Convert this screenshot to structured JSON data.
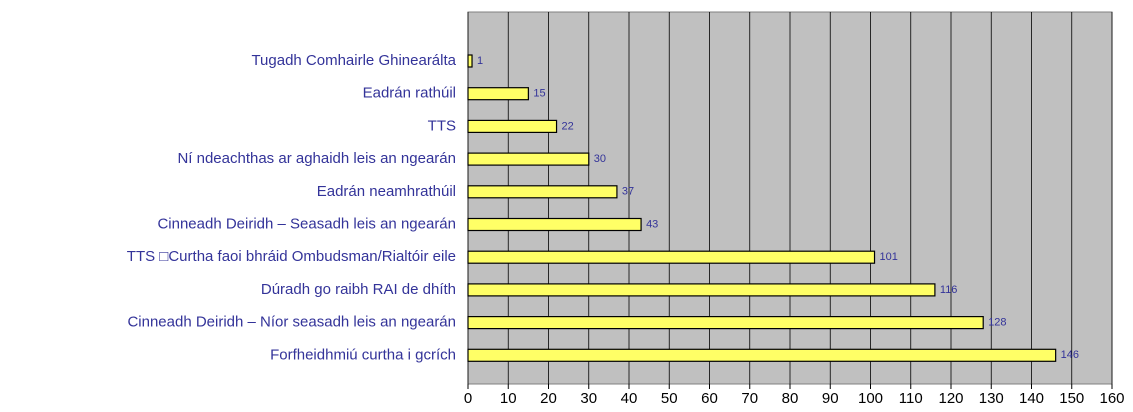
{
  "chart_data": {
    "type": "bar",
    "orientation": "horizontal",
    "categories": [
      "Tugadh Comhairle Ghinearálta",
      "Eadrán rathúil",
      "TTS",
      "Ní ndeachthas ar aghaidh leis an ngearán",
      "Eadrán neamhrathúil",
      "Cinneadh Deiridh – Seasadh leis an ngearán",
      "TTS  □Curtha faoi bhráid Ombudsman/Rialtóir eile",
      "Dúradh go raibh RAI de dhíth",
      "Cinneadh Deiridh – Níor seasadh leis an ngearán",
      "Forfheidhmiú curtha i gcrích"
    ],
    "values": [
      1,
      15,
      22,
      30,
      37,
      43,
      101,
      116,
      128,
      146
    ],
    "color": "#ffff66",
    "xlim": [
      0,
      160
    ],
    "xticks": [
      0,
      10,
      20,
      30,
      40,
      50,
      60,
      70,
      80,
      90,
      100,
      110,
      120,
      130,
      140,
      150,
      160
    ],
    "grid": true
  }
}
